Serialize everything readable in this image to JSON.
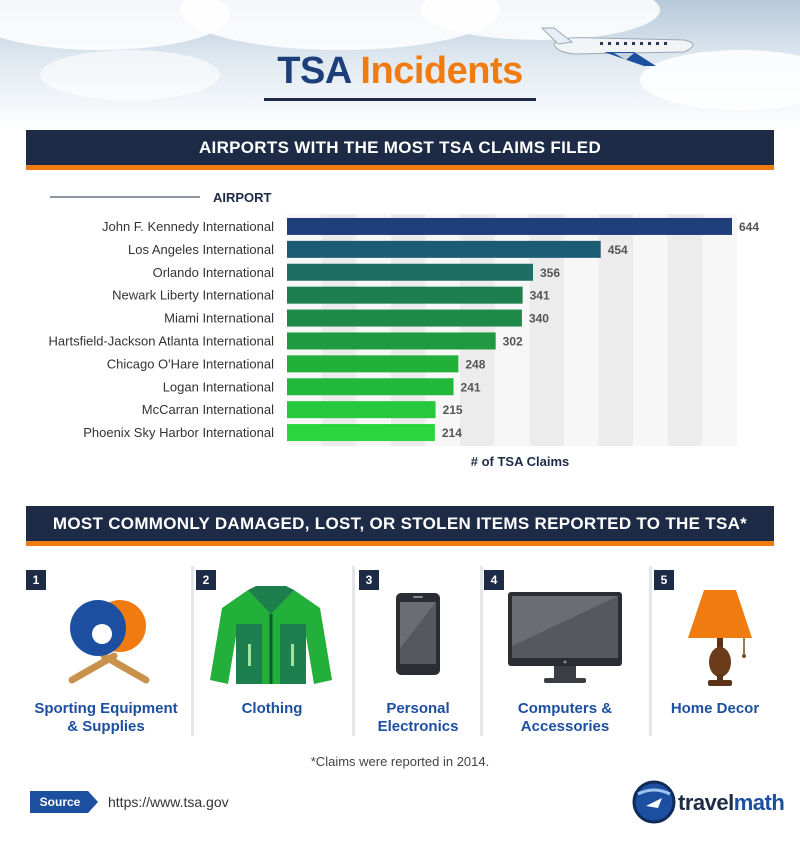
{
  "header": {
    "title_part1": "TSA",
    "title_part2": "Incidents"
  },
  "section1": {
    "banner": "AIRPORTS WITH THE MOST TSA CLAIMS FILED"
  },
  "chart_data": {
    "type": "bar",
    "orientation": "horizontal",
    "category_axis_label": "AIRPORT",
    "xlabel": "# of TSA Claims",
    "categories": [
      "John F. Kennedy International",
      "Los Angeles International",
      "Orlando International",
      "Newark Liberty International",
      "Miami International",
      "Hartsfield-Jackson Atlanta International",
      "Chicago O'Hare International",
      "Logan International",
      "McCarran International",
      "Phoenix Sky Harbor International"
    ],
    "values": [
      644,
      454,
      356,
      341,
      340,
      302,
      248,
      241,
      215,
      214
    ],
    "bar_colors": [
      "#1f3f7a",
      "#1d5b73",
      "#1e6e64",
      "#1d7f4e",
      "#1f8a47",
      "#1f9a40",
      "#22b03a",
      "#22b83a",
      "#27c83b",
      "#2bd53e"
    ],
    "xlim": [
      0,
      644
    ],
    "grid": true
  },
  "section2": {
    "banner": "MOST COMMONLY DAMAGED, LOST, OR STOLEN ITEMS REPORTED TO THE TSA*",
    "items": [
      {
        "num": "1",
        "line1": "Sporting Equipment",
        "line2": "& Supplies",
        "icon": "ping-pong-paddles-icon"
      },
      {
        "num": "2",
        "line1": "Clothing",
        "line2": "",
        "icon": "jacket-icon"
      },
      {
        "num": "3",
        "line1": "Personal",
        "line2": "Electronics",
        "icon": "smartphone-icon"
      },
      {
        "num": "4",
        "line1": "Computers &",
        "line2": "Accessories",
        "icon": "monitor-icon"
      },
      {
        "num": "5",
        "line1": "Home Decor",
        "line2": "",
        "icon": "lamp-icon"
      }
    ]
  },
  "footer": {
    "footnote": "*Claims were reported in 2014.",
    "source_label": "Source",
    "source_url": "https://www.tsa.gov",
    "logo_part1": "travel",
    "logo_part2": "math"
  }
}
